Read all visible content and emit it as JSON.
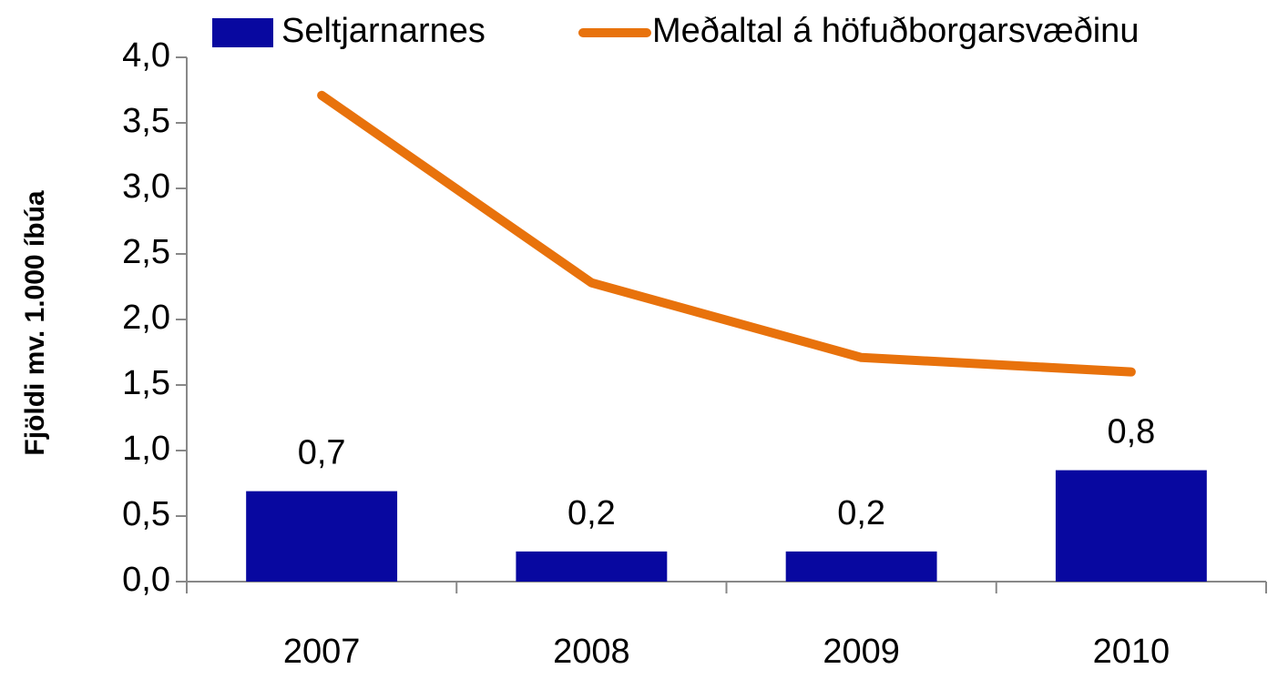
{
  "chart_data": {
    "type": "bar",
    "y_label": "Fjöldi mv. 1.000 íbúa",
    "categories": [
      "2007",
      "2008",
      "2009",
      "2010"
    ],
    "series": [
      {
        "name": "Seltjarnarnes",
        "type": "bar",
        "color": "#0808a0",
        "values": [
          0.69,
          0.23,
          0.23,
          0.85
        ],
        "value_labels": [
          "0,7",
          "0,2",
          "0,2",
          "0,8"
        ]
      },
      {
        "name": "Meðaltal á höfuðborgarsvæðinu",
        "type": "line",
        "color": "#e8720c",
        "values": [
          3.71,
          2.28,
          1.71,
          1.6
        ]
      }
    ],
    "ylim": [
      0,
      4
    ],
    "yticks": [
      {
        "value": 0,
        "label": "0,0"
      },
      {
        "value": 0.5,
        "label": "0,5"
      },
      {
        "value": 1,
        "label": "1,0"
      },
      {
        "value": 1.5,
        "label": "1,5"
      },
      {
        "value": 2,
        "label": "2,0"
      },
      {
        "value": 2.5,
        "label": "2,5"
      },
      {
        "value": 3,
        "label": "3,0"
      },
      {
        "value": 3.5,
        "label": "3,5"
      },
      {
        "value": 4,
        "label": "4,0"
      }
    ],
    "legend": "top"
  }
}
